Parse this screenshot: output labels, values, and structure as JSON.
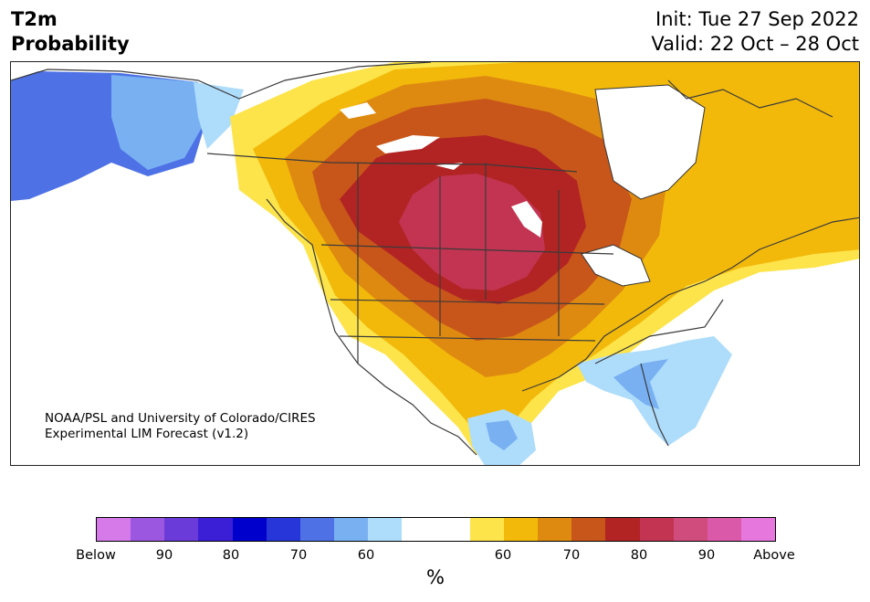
{
  "title": {
    "line1": "T2m",
    "line2": "Probability"
  },
  "dates": {
    "init": "Init: Tue 27 Sep 2022",
    "valid": "Valid: 22 Oct – 28 Oct"
  },
  "credit": {
    "line1": "NOAA/PSL and University of Colorado/CIRES",
    "line2": "Experimental LIM Forecast (v1.2)"
  },
  "colorbar": {
    "colors": [
      "#d57ae8",
      "#9b57e0",
      "#6a3bd9",
      "#3a1fd6",
      "#0000cd",
      "#2636d8",
      "#4e72e6",
      "#78b0f2",
      "#aedcfb",
      "#ffffff",
      "#ffffff",
      "#fde44a",
      "#f2b90b",
      "#de8a10",
      "#c8561a",
      "#b22424",
      "#c23451",
      "#cf4c7c",
      "#da5aa9",
      "#e677dd"
    ],
    "tick_labels": [
      "Below",
      "90",
      "80",
      "70",
      "60",
      "60",
      "70",
      "80",
      "90",
      "Above"
    ],
    "unit": "%"
  }
}
